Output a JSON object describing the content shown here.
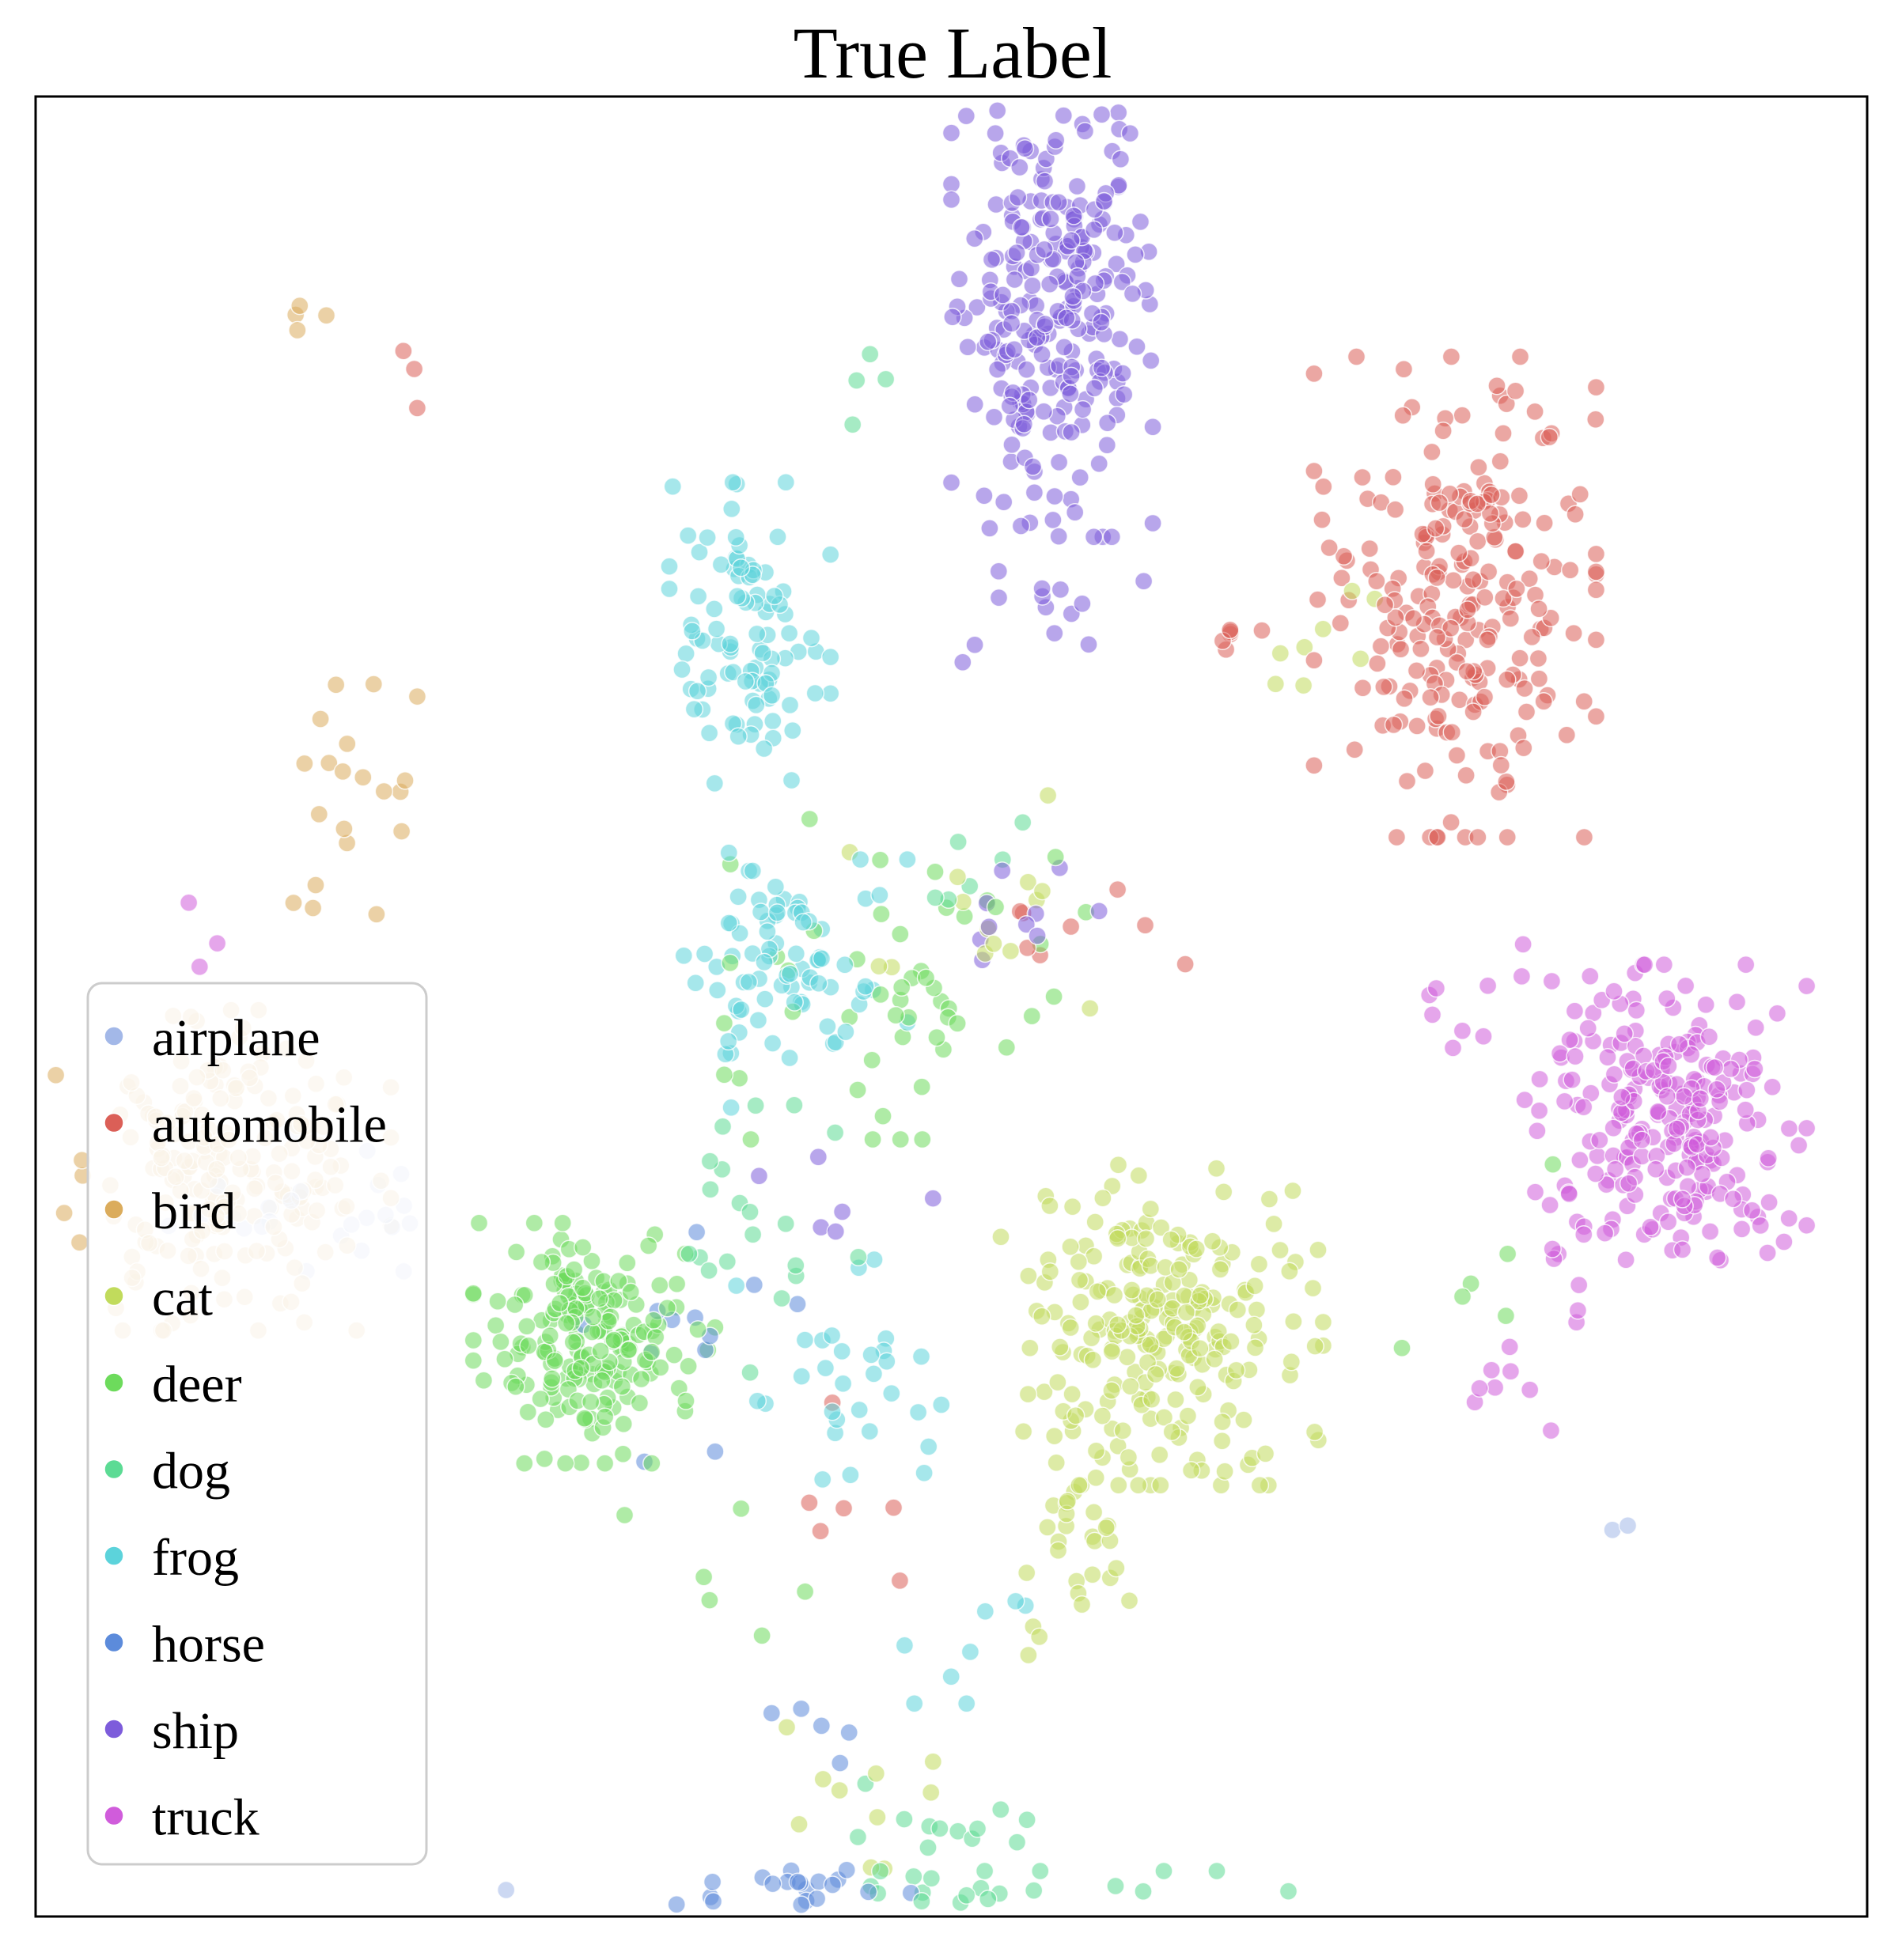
{
  "chart_data": {
    "type": "scatter",
    "title": "True Label",
    "xlabel": "",
    "ylabel": "",
    "xlim": [
      -100,
      100
    ],
    "ylim": [
      -100,
      100
    ],
    "axes_ticks": false,
    "grid": false,
    "legend_position": "bottom-left",
    "series": [
      {
        "name": "airplane",
        "color": "#a3b8e8",
        "clusters": [
          {
            "cx": -48,
            "cy": -99,
            "sx": 2,
            "sy": 2,
            "n": 2
          },
          {
            "cx": 73,
            "cy": -58,
            "sx": 2,
            "sy": 2,
            "n": 2
          },
          {
            "cx": -69,
            "cy": -22,
            "sx": 8,
            "sy": 4,
            "n": 24
          }
        ]
      },
      {
        "name": "automobile",
        "color": "#db5f57",
        "clusters": [
          {
            "cx": 55,
            "cy": 45,
            "sx": 7,
            "sy": 12,
            "n": 230
          },
          {
            "cx": 30,
            "cy": 40,
            "sx": 2,
            "sy": 2,
            "n": 6
          },
          {
            "cx": 15,
            "cy": 6,
            "sx": 6,
            "sy": 4,
            "n": 8
          },
          {
            "cx": -60,
            "cy": 70,
            "sx": 3,
            "sy": 3,
            "n": 3
          },
          {
            "cx": -10,
            "cy": -55,
            "sx": 8,
            "sy": 6,
            "n": 6
          }
        ]
      },
      {
        "name": "bird",
        "color": "#dbac5c",
        "clusters": [
          {
            "cx": -81,
            "cy": -18,
            "sx": 9,
            "sy": 8,
            "n": 210
          },
          {
            "cx": -65,
            "cy": 20,
            "sx": 4,
            "sy": 9,
            "n": 20
          },
          {
            "cx": -72,
            "cy": 76,
            "sx": 3,
            "sy": 2,
            "n": 4
          },
          {
            "cx": 4,
            "cy": -110,
            "sx": 2,
            "sy": 2,
            "n": 2
          }
        ]
      },
      {
        "name": "cat",
        "color": "#c1db5c",
        "clusters": [
          {
            "cx": 23,
            "cy": -35,
            "sx": 8,
            "sy": 8,
            "n": 235
          },
          {
            "cx": 13,
            "cy": -58,
            "sx": 3,
            "sy": 7,
            "n": 32
          },
          {
            "cx": 2,
            "cy": 10,
            "sx": 8,
            "sy": 6,
            "n": 14
          },
          {
            "cx": 42,
            "cy": 40,
            "sx": 3,
            "sy": 6,
            "n": 8
          },
          {
            "cx": -10,
            "cy": -88,
            "sx": 5,
            "sy": 4,
            "n": 10
          }
        ]
      },
      {
        "name": "deer",
        "color": "#6ddb5c",
        "clusters": [
          {
            "cx": -39,
            "cy": -37,
            "sx": 6,
            "sy": 6,
            "n": 190
          },
          {
            "cx": -5,
            "cy": 3,
            "sx": 9,
            "sy": 8,
            "n": 50
          },
          {
            "cx": -25,
            "cy": -60,
            "sx": 5,
            "sy": 6,
            "n": 6
          },
          {
            "cx": 58,
            "cy": -29,
            "sx": 4,
            "sy": 6,
            "n": 6
          }
        ]
      },
      {
        "name": "dog",
        "color": "#5cdb94",
        "clusters": [
          {
            "cx": 17,
            "cy": -117,
            "sx": 9,
            "sy": 10,
            "n": 220
          },
          {
            "cx": -2,
            "cy": -95,
            "sx": 5,
            "sy": 5,
            "n": 30
          },
          {
            "cx": 3,
            "cy": 15,
            "sx": 3,
            "sy": 3,
            "n": 6
          },
          {
            "cx": -6,
            "cy": 70,
            "sx": 3,
            "sy": 3,
            "n": 4
          },
          {
            "cx": -20,
            "cy": -25,
            "sx": 5,
            "sy": 8,
            "n": 20
          }
        ]
      },
      {
        "name": "frog",
        "color": "#5cd3db",
        "clusters": [
          {
            "cx": -22,
            "cy": 40,
            "sx": 4,
            "sy": 8,
            "n": 95
          },
          {
            "cx": -18,
            "cy": 4,
            "sx": 6,
            "sy": 7,
            "n": 80
          },
          {
            "cx": -12,
            "cy": -40,
            "sx": 6,
            "sy": 8,
            "n": 30
          },
          {
            "cx": 2,
            "cy": -70,
            "sx": 4,
            "sy": 3,
            "n": 8
          },
          {
            "cx": -15,
            "cy": -110,
            "sx": 4,
            "sy": 3,
            "n": 4
          }
        ]
      },
      {
        "name": "horse",
        "color": "#5c8bdb",
        "clusters": [
          {
            "cx": -24,
            "cy": -116,
            "sx": 6,
            "sy": 9,
            "n": 230
          },
          {
            "cx": -15,
            "cy": -98,
            "sx": 5,
            "sy": 3,
            "n": 25
          },
          {
            "cx": -30,
            "cy": -38,
            "sx": 6,
            "sy": 6,
            "n": 12
          },
          {
            "cx": -14,
            "cy": -80,
            "sx": 3,
            "sy": 2,
            "n": 5
          }
        ]
      },
      {
        "name": "ship",
        "color": "#7d5cdb",
        "clusters": [
          {
            "cx": 11,
            "cy": 78,
            "sx": 5,
            "sy": 12,
            "n": 260
          },
          {
            "cx": 10,
            "cy": 44,
            "sx": 5,
            "sy": 4,
            "n": 14
          },
          {
            "cx": 8,
            "cy": 10,
            "sx": 5,
            "sy": 3,
            "n": 10
          },
          {
            "cx": -10,
            "cy": -20,
            "sx": 5,
            "sy": 5,
            "n": 6
          }
        ]
      },
      {
        "name": "truck",
        "color": "#d05cdb",
        "clusters": [
          {
            "cx": 78,
            "cy": -13,
            "sx": 7,
            "sy": 8,
            "n": 240
          },
          {
            "cx": 57,
            "cy": 2,
            "sx": 4,
            "sy": 3,
            "n": 10
          },
          {
            "cx": 63,
            "cy": -40,
            "sx": 4,
            "sy": 3,
            "n": 10
          },
          {
            "cx": -79,
            "cy": 7,
            "sx": 3,
            "sy": 2,
            "n": 3
          }
        ]
      }
    ]
  }
}
